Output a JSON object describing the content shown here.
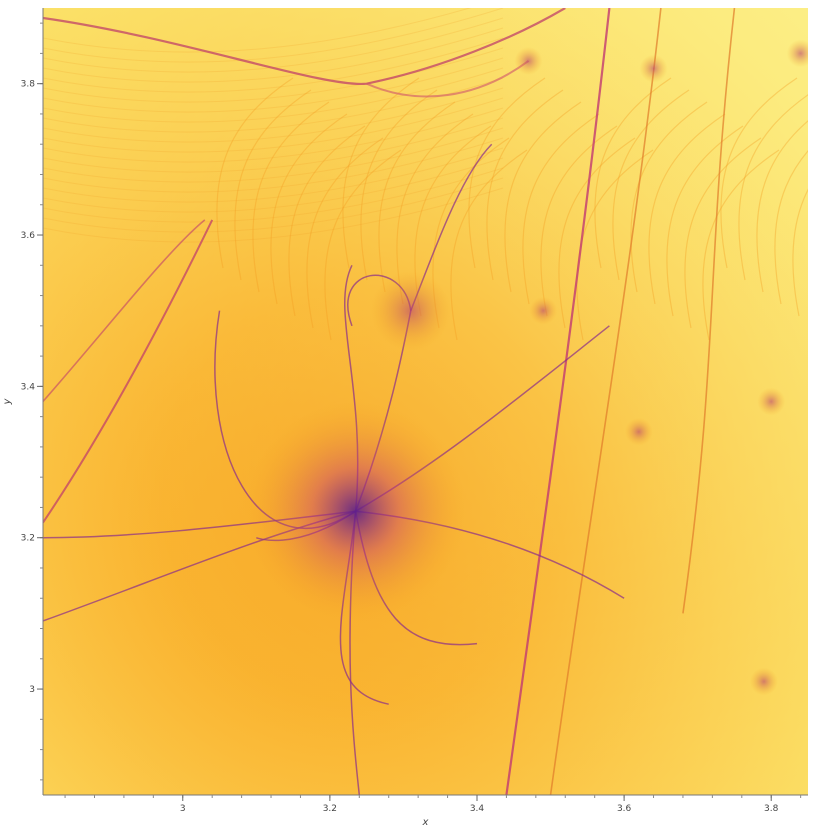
{
  "chart_data": {
    "type": "heatmap",
    "title": "",
    "xlabel": "x",
    "ylabel": "y",
    "xlim": [
      2.81,
      3.85
    ],
    "ylim": [
      2.86,
      3.9
    ],
    "x_ticks": [
      3,
      3.2,
      3.4,
      3.6,
      3.8
    ],
    "x_tick_labels": [
      "3",
      "3.2",
      "3.4",
      "3.6",
      "3.8"
    ],
    "y_ticks": [
      3,
      3.2,
      3.4,
      3.6,
      3.8
    ],
    "y_tick_labels": [
      "3",
      "3.2",
      "3.4",
      "3.6",
      "3.8"
    ],
    "colormap": "inferno (reversed density)",
    "colors": {
      "light": "#fbe96a",
      "mid": "#fbb12c",
      "orange": "#f59e1a",
      "dark": "#7a2a8f",
      "darkest": "#4b1b8f"
    },
    "features": {
      "focal_point": [
        3.235,
        3.235
      ],
      "secondary_point": [
        3.31,
        3.5
      ],
      "diagonal_curves": [
        {
          "from": [
            3.44,
            2.86
          ],
          "to": [
            3.58,
            3.9
          ]
        },
        {
          "from": [
            3.5,
            2.86
          ],
          "to": [
            3.65,
            3.9
          ]
        },
        {
          "from": [
            3.68,
            3.1
          ],
          "to": [
            3.75,
            3.9
          ]
        }
      ],
      "top_curve": {
        "from": [
          2.81,
          3.9
        ],
        "via": [
          3.25,
          3.8
        ],
        "to": [
          3.52,
          3.9
        ]
      }
    }
  }
}
